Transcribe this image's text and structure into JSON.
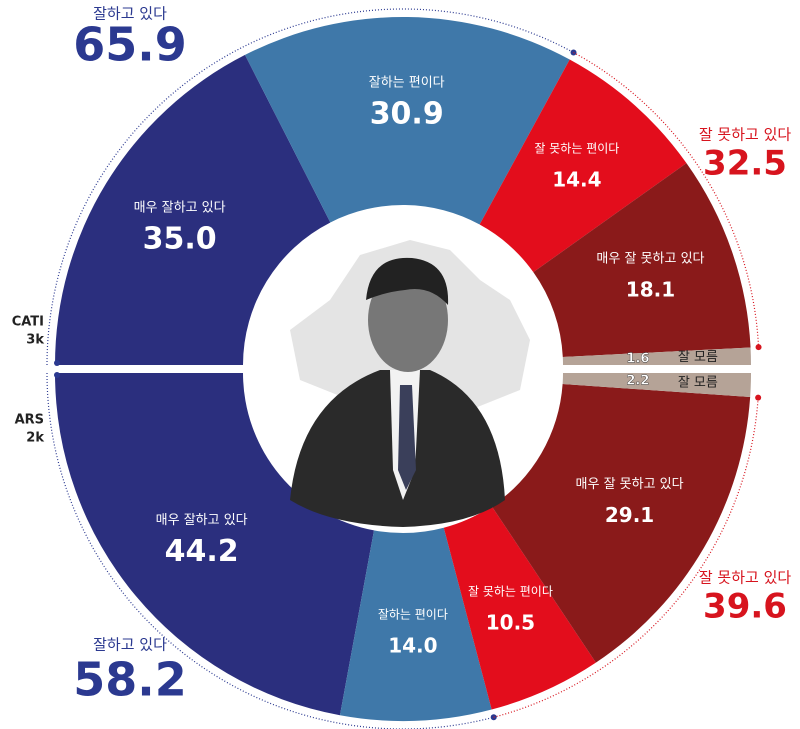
{
  "chart_data": [
    {
      "type": "donut",
      "half": "top",
      "name": "CATI",
      "sample": "3k",
      "categories": [
        "매우 잘하고 있다",
        "잘하는 편이다",
        "잘 못하는 편이다",
        "매우 잘 못하고 있다",
        "잘 모름"
      ],
      "values": [
        35.0,
        30.9,
        14.4,
        18.1,
        1.6
      ],
      "value_labels": [
        "35.0",
        "30.9",
        "14.4",
        "18.1",
        "1.6"
      ],
      "colors": [
        "#2b2f7e",
        "#3f78a9",
        "#e30d1c",
        "#8a1a1a",
        "#b5a397"
      ],
      "totals": [
        {
          "name": "잘하고 있다",
          "value": 65.9,
          "color": "#2b3990"
        },
        {
          "name": "잘 못하고 있다",
          "value": 32.5,
          "color": "#d7141e"
        }
      ]
    },
    {
      "type": "donut",
      "half": "bottom",
      "name": "ARS",
      "sample": "2k",
      "categories": [
        "매우 잘하고 있다",
        "잘하는 편이다",
        "잘 못하는 편이다",
        "매우 잘 못하고 있다",
        "잘 모름"
      ],
      "values": [
        44.2,
        14.0,
        10.5,
        29.1,
        2.2
      ],
      "value_labels": [
        "44.2",
        "14.0",
        "10.5",
        "29.1",
        "2.2"
      ],
      "colors": [
        "#2b2f7e",
        "#3f78a9",
        "#e30d1c",
        "#8a1a1a",
        "#b5a397"
      ],
      "totals": [
        {
          "name": "잘하고 있다",
          "value": 58.2,
          "color": "#2b3990"
        },
        {
          "name": "잘 못하고 있다",
          "value": 39.6,
          "color": "#d7141e"
        }
      ]
    }
  ]
}
